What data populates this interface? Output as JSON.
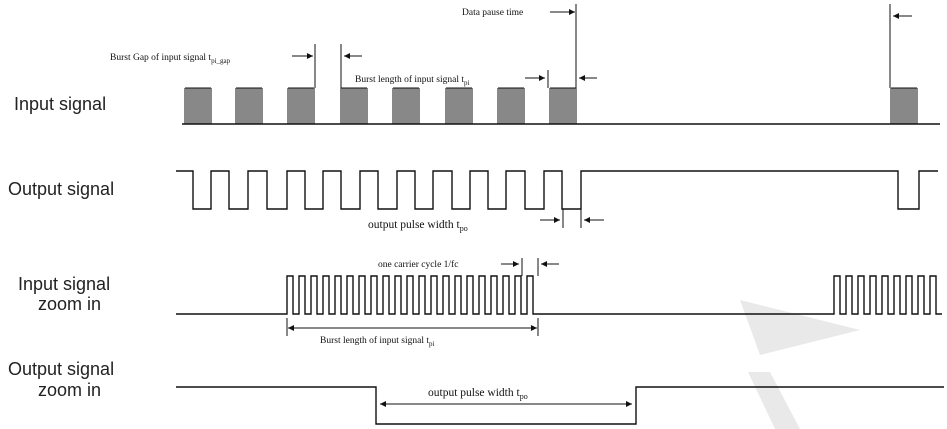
{
  "labels": {
    "input_signal": "Input signal",
    "output_signal": "Output signal",
    "input_zoom_line1": "Input signal",
    "input_zoom_line2": "zoom in",
    "output_zoom_line1": "Output signal",
    "output_zoom_line2": "zoom in"
  },
  "annotations": {
    "data_pause": "Data pause time",
    "burst_gap_main": "Burst Gap of input signal t",
    "burst_gap_sub": "pi_gap",
    "burst_length_main": "Burst length of input signal t",
    "burst_length_sub": "pi",
    "output_pulse_main": "output pulse width  t",
    "output_pulse_sub": "po",
    "carrier_cycle": "one carrier cycle 1/fc",
    "zoom_burst_main": "Burst length of input signal t",
    "zoom_burst_sub": "pi",
    "zoom_pulse_main": "output pulse width  t",
    "zoom_pulse_sub": "po"
  },
  "colors": {
    "line": "#111111",
    "text": "#222222",
    "watermark": "#e0e0e0"
  }
}
